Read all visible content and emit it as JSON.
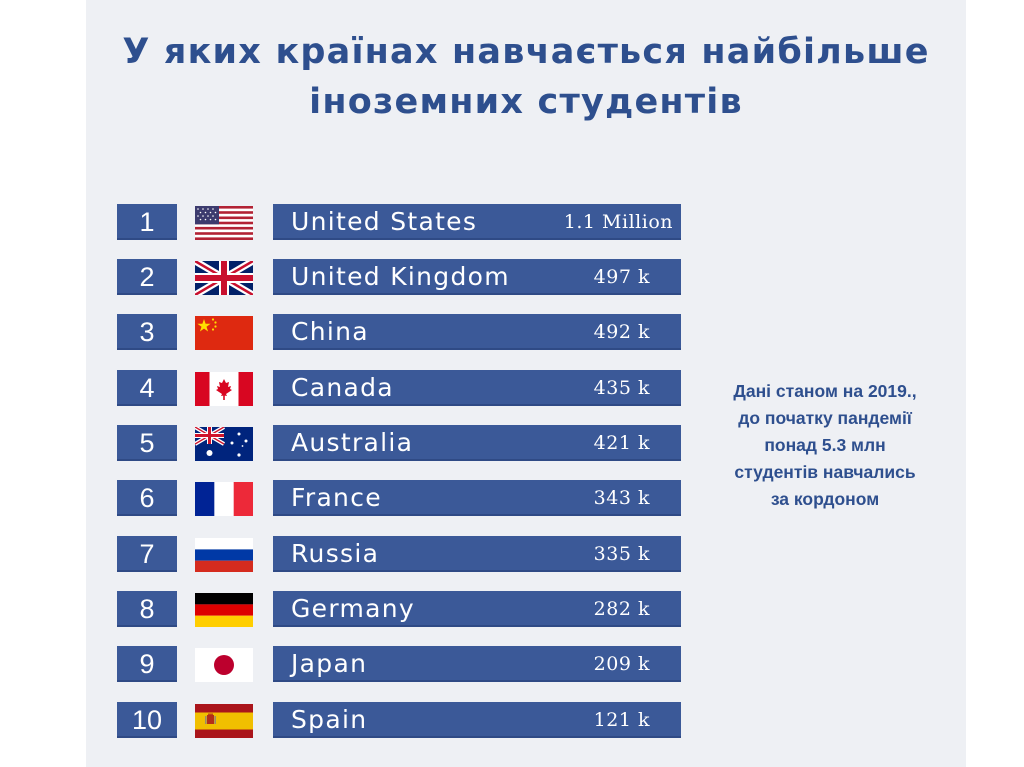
{
  "title": {
    "line1": "У яких країнах навчається найбільше",
    "line2": "іноземних студентів"
  },
  "ranking": [
    {
      "rank": "1",
      "country": "United States",
      "amount": "1.1 Million",
      "flag": "usa-flag-icon"
    },
    {
      "rank": "2",
      "country": "United Kingdom",
      "amount": "497 k",
      "flag": "uk-flag-icon"
    },
    {
      "rank": "3",
      "country": "China",
      "amount": "492 k",
      "flag": "china-flag-icon"
    },
    {
      "rank": "4",
      "country": "Canada",
      "amount": "435 k",
      "flag": "canada-flag-icon"
    },
    {
      "rank": "5",
      "country": "Australia",
      "amount": "421 k",
      "flag": "australia-flag-icon"
    },
    {
      "rank": "6",
      "country": "France",
      "amount": "343 k",
      "flag": "france-flag-icon"
    },
    {
      "rank": "7",
      "country": "Russia",
      "amount": "335 k",
      "flag": "russia-flag-icon"
    },
    {
      "rank": "8",
      "country": "Germany",
      "amount": "282 k",
      "flag": "germany-flag-icon"
    },
    {
      "rank": "9",
      "country": "Japan",
      "amount": "209 k",
      "flag": "japan-flag-icon"
    },
    {
      "rank": "10",
      "country": "Spain",
      "amount": "121 k",
      "flag": "spain-flag-icon"
    }
  ],
  "note": {
    "line1": "Дані станом на 2019.,",
    "line2": "до початку пандемії",
    "line3": "понад 5.3 млн",
    "line4": "студентів навчались",
    "line5": "за кордоном"
  },
  "colors": {
    "bar": "#3b5998",
    "title": "#2e4f8e",
    "background": "#eef0f4"
  }
}
